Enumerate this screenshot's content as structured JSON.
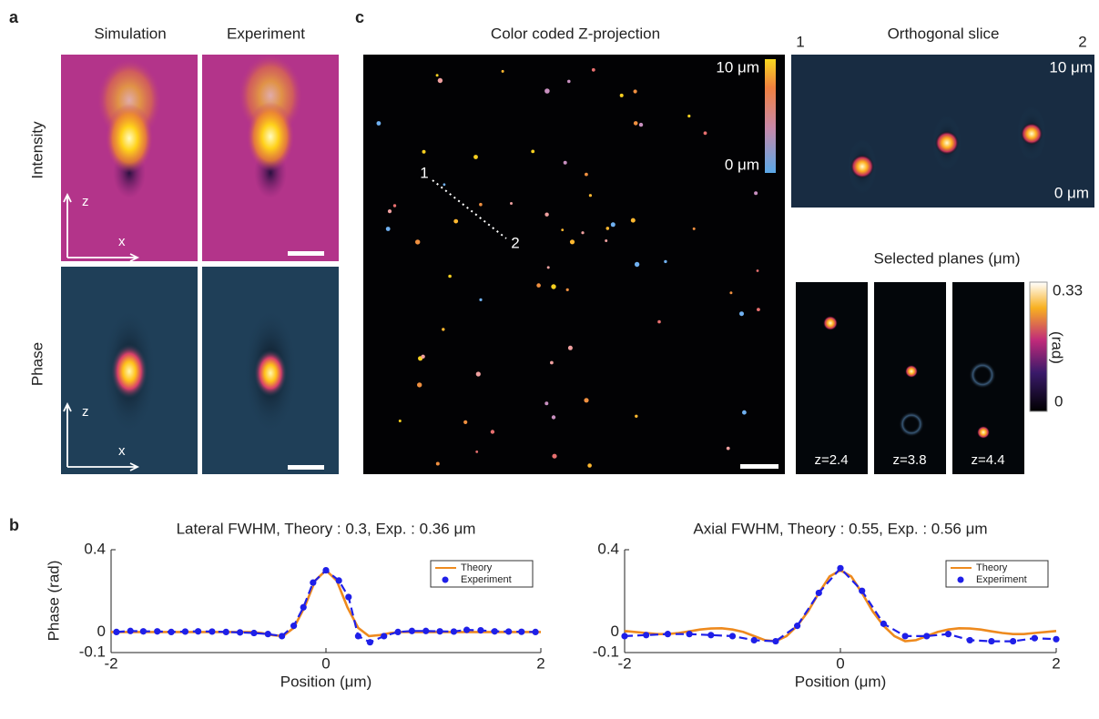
{
  "panel_labels": [
    "a",
    "b",
    "c"
  ],
  "panel_a": {
    "columns": [
      "Simulation",
      "Experiment"
    ],
    "rows": [
      "Intensity",
      "Phase"
    ],
    "axis_labels": [
      "z",
      "x"
    ]
  },
  "panel_c": {
    "title": "Color coded Z-projection",
    "colorbar_labels": [
      "10 μm",
      "0 μm"
    ],
    "line_labels": [
      "1",
      "2"
    ]
  },
  "orthogonal_slice": {
    "title": "Orthogonal slice",
    "end_labels": [
      "1",
      "2"
    ],
    "depth_labels": [
      "10 μm",
      "0 μm"
    ]
  },
  "selected_planes": {
    "title": "Selected planes (μm)",
    "planes": [
      "z=2.4",
      "z=3.8",
      "z=4.4"
    ],
    "colorbar_labels": [
      "0.33",
      "0"
    ],
    "colorbar_unit": "(rad)"
  },
  "chart_data": [
    {
      "type": "line",
      "title": "Lateral FWHM, Theory : 0.3, Exp. : 0.36 μm",
      "xlabel": "Position (μm)",
      "ylabel": "Phase (rad)",
      "xlim": [
        -2,
        2
      ],
      "ylim": [
        -0.1,
        0.4
      ],
      "xticks": [
        -2,
        0,
        2
      ],
      "yticks": [
        0.4,
        0,
        -0.1
      ],
      "legend": "upper right",
      "series": [
        {
          "name": "Theory",
          "color": "#ee8a1e",
          "style": "solid",
          "x": [
            -2,
            -1.9,
            -1.8,
            -1.7,
            -1.6,
            -1.5,
            -1.4,
            -1.3,
            -1.2,
            -1.1,
            -1,
            -0.9,
            -0.8,
            -0.7,
            -0.6,
            -0.5,
            -0.4,
            -0.3,
            -0.2,
            -0.1,
            0,
            0.1,
            0.2,
            0.3,
            0.4,
            0.5,
            0.6,
            0.7,
            0.8,
            0.9,
            1,
            1.1,
            1.2,
            1.3,
            1.4,
            1.5,
            1.6,
            1.7,
            1.8,
            1.9,
            2
          ],
          "values": [
            0,
            0,
            0,
            0,
            0,
            0,
            0,
            0,
            0,
            0,
            0,
            0,
            0,
            0,
            -0.005,
            -0.015,
            -0.02,
            0.02,
            0.12,
            0.25,
            0.3,
            0.25,
            0.12,
            0.02,
            -0.02,
            -0.015,
            -0.005,
            0,
            0,
            0,
            0,
            0,
            0,
            0,
            0,
            0,
            0,
            0,
            0,
            0,
            0
          ]
        },
        {
          "name": "Experiment",
          "color": "#1f1fe8",
          "style": "dashed",
          "markers": true,
          "x": [
            -1.95,
            -1.82,
            -1.7,
            -1.57,
            -1.44,
            -1.31,
            -1.19,
            -1.06,
            -0.93,
            -0.8,
            -0.67,
            -0.54,
            -0.41,
            -0.3,
            -0.21,
            -0.12,
            0,
            0.12,
            0.21,
            0.3,
            0.41,
            0.54,
            0.67,
            0.8,
            0.93,
            1.06,
            1.19,
            1.31,
            1.44,
            1.57,
            1.7,
            1.82,
            1.95
          ],
          "values": [
            0,
            0.005,
            0.003,
            0.003,
            0,
            0.002,
            0.003,
            0.002,
            0,
            -0.002,
            -0.005,
            -0.01,
            -0.02,
            0.03,
            0.12,
            0.24,
            0.3,
            0.25,
            0.17,
            -0.02,
            -0.05,
            -0.02,
            0,
            0.005,
            0.005,
            0.003,
            0.002,
            0.01,
            0.008,
            0.003,
            0.002,
            0.001,
            0
          ]
        }
      ]
    },
    {
      "type": "line",
      "title": "Axial FWHM, Theory : 0.55, Exp. : 0.56 μm",
      "xlabel": "Position (μm)",
      "xlim": [
        -2,
        2
      ],
      "ylim": [
        -0.1,
        0.4
      ],
      "xticks": [
        -2,
        0,
        2
      ],
      "yticks": [
        0.4,
        0,
        -0.1
      ],
      "legend": "upper right",
      "series": [
        {
          "name": "Theory",
          "color": "#ee8a1e",
          "style": "solid",
          "x": [
            -2,
            -1.9,
            -1.8,
            -1.7,
            -1.6,
            -1.5,
            -1.4,
            -1.3,
            -1.2,
            -1.1,
            -1,
            -0.9,
            -0.8,
            -0.7,
            -0.6,
            -0.5,
            -0.4,
            -0.3,
            -0.2,
            -0.1,
            0,
            0.1,
            0.2,
            0.3,
            0.4,
            0.5,
            0.6,
            0.7,
            0.8,
            0.9,
            1,
            1.1,
            1.2,
            1.3,
            1.4,
            1.5,
            1.6,
            1.7,
            1.8,
            1.9,
            2
          ],
          "values": [
            0.005,
            0,
            -0.005,
            -0.01,
            -0.01,
            -0.005,
            0.003,
            0.012,
            0.017,
            0.018,
            0.012,
            0,
            -0.02,
            -0.04,
            -0.045,
            -0.02,
            0.03,
            0.1,
            0.19,
            0.27,
            0.3,
            0.27,
            0.19,
            0.1,
            0.03,
            -0.02,
            -0.045,
            -0.04,
            -0.02,
            0,
            0.012,
            0.018,
            0.017,
            0.012,
            0.003,
            -0.005,
            -0.01,
            -0.01,
            -0.005,
            0,
            0.005
          ]
        },
        {
          "name": "Experiment",
          "color": "#1f1fe8",
          "style": "dashed",
          "markers": true,
          "x": [
            -2,
            -1.8,
            -1.6,
            -1.4,
            -1.2,
            -1,
            -0.8,
            -0.6,
            -0.4,
            -0.2,
            0,
            0.2,
            0.4,
            0.6,
            0.8,
            1,
            1.2,
            1.4,
            1.6,
            1.8,
            2
          ],
          "values": [
            -0.02,
            -0.015,
            -0.01,
            -0.01,
            -0.015,
            -0.02,
            -0.04,
            -0.045,
            0.03,
            0.19,
            0.31,
            0.2,
            0.04,
            -0.02,
            -0.02,
            -0.01,
            -0.04,
            -0.045,
            -0.045,
            -0.03,
            -0.035
          ]
        }
      ]
    }
  ]
}
